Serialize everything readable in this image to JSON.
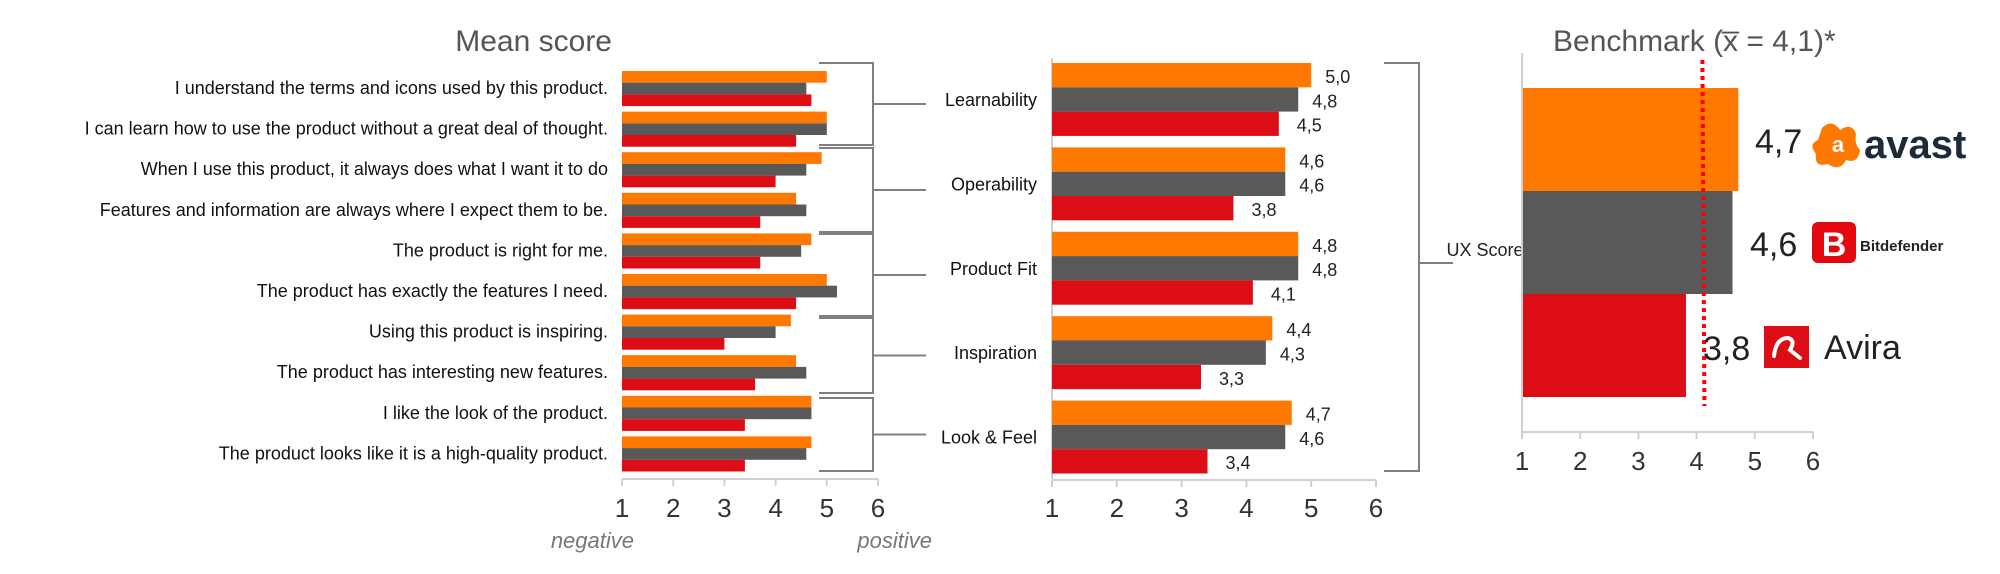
{
  "colors": {
    "avast": "#FF7800",
    "bitdefender": "#595959",
    "avira": "#DC0D15",
    "benchmark_line": "#FF0000",
    "bracket": "#808080"
  },
  "chart_data": [
    {
      "type": "bar",
      "orientation": "horizontal",
      "title": "Mean score",
      "xlim": [
        1,
        6
      ],
      "ticks": [
        "1",
        "2",
        "3",
        "4",
        "5",
        "6"
      ],
      "xlabel_left": "negative",
      "xlabel_right": "positive",
      "categories": [
        "I understand the terms and icons used by this product.",
        "I can learn how to use the product without a great deal of thought.",
        "When I use this product, it always does what I want it to do",
        "Features and information are always where I expect them to be.",
        "The product is right for me.",
        "The product has exactly the features I need.",
        "Using this product is inspiring.",
        "The product has interesting new features.",
        "I like the look of the product.",
        "The product looks like it is a high-quality product."
      ],
      "series": [
        {
          "key": "avast",
          "values": [
            5.0,
            5.0,
            4.9,
            4.4,
            4.7,
            5.0,
            4.3,
            4.4,
            4.7,
            4.7
          ]
        },
        {
          "key": "bitdefender",
          "values": [
            4.6,
            5.0,
            4.6,
            4.6,
            4.5,
            5.2,
            4.0,
            4.6,
            4.7,
            4.6
          ]
        },
        {
          "key": "avira",
          "values": [
            4.7,
            4.4,
            4.0,
            3.7,
            3.7,
            4.4,
            3.0,
            3.6,
            3.4,
            3.4
          ]
        }
      ]
    },
    {
      "type": "bar",
      "orientation": "horizontal",
      "xlim": [
        1,
        6
      ],
      "ticks": [
        "1",
        "2",
        "3",
        "4",
        "5",
        "6"
      ],
      "categories": [
        "Learnability",
        "Operability",
        "Product Fit",
        "Inspiration",
        "Look & Feel"
      ],
      "bracket_label": "UX Score",
      "series": [
        {
          "key": "avast",
          "values": [
            5.0,
            4.6,
            4.8,
            4.4,
            4.7
          ],
          "labels": [
            "5,0",
            "4,6",
            "4,8",
            "4,4",
            "4,7"
          ]
        },
        {
          "key": "bitdefender",
          "values": [
            4.8,
            4.6,
            4.8,
            4.3,
            4.6
          ],
          "labels": [
            "4,8",
            "4,6",
            "4,8",
            "4,3",
            "4,6"
          ]
        },
        {
          "key": "avira",
          "values": [
            4.5,
            3.8,
            4.1,
            3.3,
            3.4
          ],
          "labels": [
            "4,5",
            "3,8",
            "4,1",
            "3,3",
            "3,4"
          ]
        }
      ]
    },
    {
      "type": "bar",
      "orientation": "horizontal",
      "title": "Benchmark (x̅ = 4,1)*",
      "xlim": [
        1,
        6
      ],
      "ticks": [
        "1",
        "2",
        "3",
        "4",
        "5",
        "6"
      ],
      "benchmark": 4.1,
      "series": [
        {
          "key": "avast",
          "name": "avast",
          "value": 4.7,
          "label": "4,7"
        },
        {
          "key": "bitdefender",
          "name": "Bitdefender",
          "value": 4.6,
          "label": "4,6"
        },
        {
          "key": "avira",
          "name": "Avira",
          "value": 3.8,
          "label": "3,8"
        }
      ]
    }
  ]
}
